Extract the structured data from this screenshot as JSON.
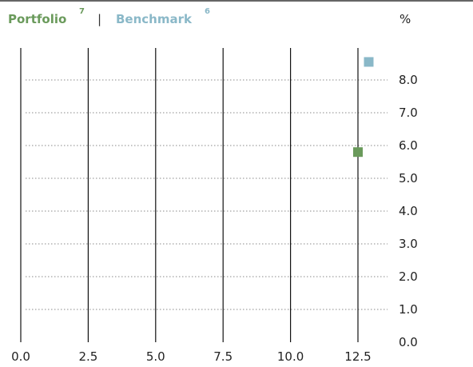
{
  "chart_data": {
    "type": "scatter",
    "unit_label": "%",
    "legend_separator": "|",
    "series": [
      {
        "name": "Portfolio",
        "footnote": "7",
        "color": "#6a9a5b",
        "points": [
          {
            "x": 12.5,
            "y": 5.8
          }
        ]
      },
      {
        "name": "Benchmark",
        "footnote": "6",
        "color": "#8ab8c8",
        "points": [
          {
            "x": 12.9,
            "y": 8.55
          }
        ]
      }
    ],
    "xlim": [
      0,
      13
    ],
    "ylim": [
      0,
      9
    ],
    "x_ticks": [
      0,
      2.5,
      5,
      7.5,
      10,
      12.5
    ],
    "x_tick_labels": [
      "0.0",
      "2.5",
      "5.0",
      "7.5",
      "10.0",
      "12.5"
    ],
    "y_ticks": [
      0,
      1,
      2,
      3,
      4,
      5,
      6,
      7,
      8
    ],
    "y_tick_labels": [
      "0.0",
      "1.0",
      "2.0",
      "3.0",
      "4.0",
      "5.0",
      "6.0",
      "7.0",
      "8.0"
    ],
    "grid": true,
    "legend_position": "top-left"
  }
}
